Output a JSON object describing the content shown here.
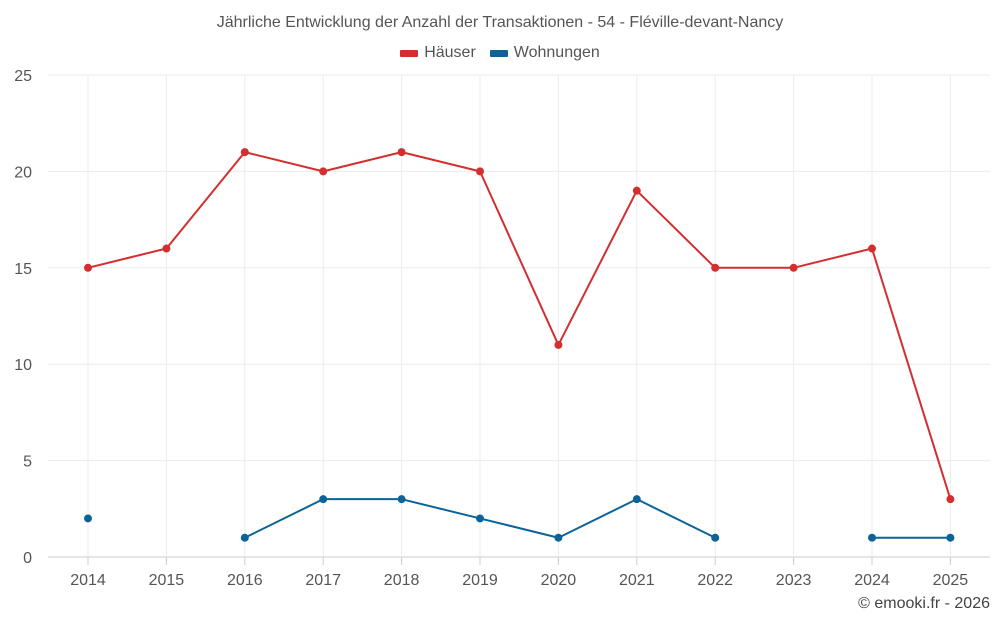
{
  "chart_data": {
    "type": "line",
    "title": "Jährliche Entwicklung der Anzahl der Transaktionen - 54 - Fléville-devant-Nancy",
    "xlabel": "",
    "ylabel": "",
    "categories": [
      "2014",
      "2015",
      "2016",
      "2017",
      "2018",
      "2019",
      "2020",
      "2021",
      "2022",
      "2023",
      "2024",
      "2025"
    ],
    "ylim": [
      0,
      25
    ],
    "yticks": [
      0,
      5,
      10,
      15,
      20,
      25
    ],
    "grid": true,
    "legend_position": "top-center",
    "series": [
      {
        "name": "Häuser",
        "color": "#d32f2f",
        "values": [
          15,
          16,
          21,
          20,
          21,
          20,
          11,
          19,
          15,
          15,
          16,
          3
        ]
      },
      {
        "name": "Wohnungen",
        "color": "#0d6398",
        "values": [
          2,
          null,
          1,
          3,
          3,
          2,
          1,
          3,
          1,
          null,
          1,
          1
        ]
      }
    ]
  },
  "credit": "© emooki.fr - 2026"
}
